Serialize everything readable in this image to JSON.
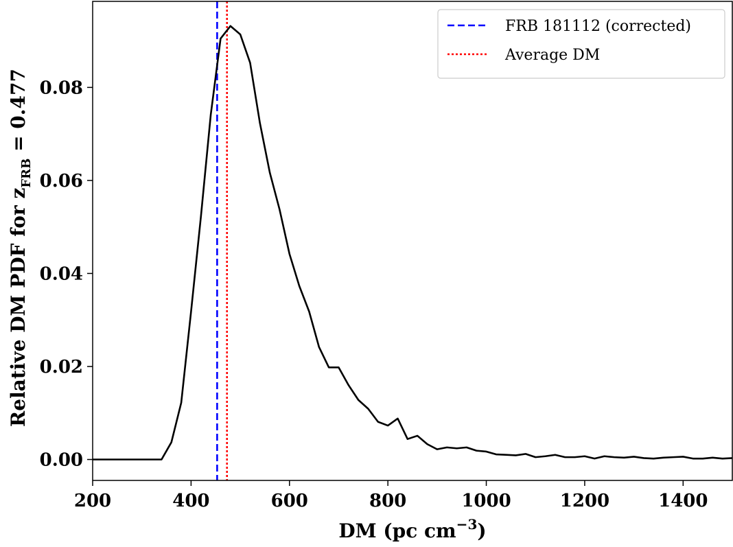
{
  "chart_data": {
    "type": "line",
    "xlabel": "DM (pc cm",
    "xlabel_sup": "−3",
    "xlabel_close": ")",
    "ylabel": "Relative DM PDF for z",
    "ylabel_sub": "FRB",
    "ylabel_tail": " = 0.477",
    "xlim": [
      200,
      1500
    ],
    "ylim": [
      -0.0045,
      0.0985
    ],
    "xticks": [
      200,
      400,
      600,
      800,
      1000,
      1200,
      1400
    ],
    "xtick_labels": [
      "200",
      "400",
      "600",
      "800",
      "1000",
      "1200",
      "1400"
    ],
    "yticks": [
      0.0,
      0.02,
      0.04,
      0.06,
      0.08
    ],
    "ytick_labels": [
      "0.00",
      "0.02",
      "0.04",
      "0.06",
      "0.08"
    ],
    "grid": false,
    "legend_position": "top-right",
    "legend": [
      {
        "label": "FRB 181112 (corrected)",
        "color": "#0000ff",
        "style": "dashed"
      },
      {
        "label": "Average DM",
        "color": "#ff0000",
        "style": "dotted"
      }
    ],
    "vlines": [
      {
        "x": 453,
        "color": "#0000ff",
        "style": "dashed"
      },
      {
        "x": 473,
        "color": "#ff0000",
        "style": "dotted"
      }
    ],
    "series": [
      {
        "color": "#000000",
        "x": [
          200,
          340,
          360,
          380,
          400,
          420,
          440,
          460,
          480,
          500,
          520,
          540,
          560,
          580,
          600,
          620,
          640,
          660,
          680,
          700,
          720,
          740,
          760,
          780,
          800,
          820,
          840,
          860,
          880,
          900,
          920,
          940,
          960,
          980,
          1000,
          1020,
          1040,
          1060,
          1080,
          1100,
          1120,
          1140,
          1160,
          1180,
          1200,
          1220,
          1240,
          1260,
          1280,
          1300,
          1320,
          1340,
          1360,
          1380,
          1400,
          1420,
          1440,
          1460,
          1480,
          1500
        ],
        "y": [
          0.0,
          0.0,
          0.0037,
          0.0122,
          0.0318,
          0.0522,
          0.0741,
          0.0905,
          0.0932,
          0.0914,
          0.0853,
          0.0723,
          0.0617,
          0.0537,
          0.0442,
          0.0373,
          0.0318,
          0.0242,
          0.0198,
          0.0198,
          0.016,
          0.0128,
          0.0109,
          0.0081,
          0.0073,
          0.0088,
          0.0044,
          0.0051,
          0.0033,
          0.0022,
          0.0026,
          0.0024,
          0.0026,
          0.0019,
          0.0017,
          0.0011,
          0.001,
          0.0009,
          0.0012,
          0.0005,
          0.0007,
          0.001,
          0.0005,
          0.0005,
          0.0007,
          0.0002,
          0.0007,
          0.0005,
          0.0004,
          0.0006,
          0.0003,
          0.0002,
          0.0004,
          0.0005,
          0.0006,
          0.0002,
          0.0002,
          0.0004,
          0.0002,
          0.0003
        ]
      }
    ]
  }
}
